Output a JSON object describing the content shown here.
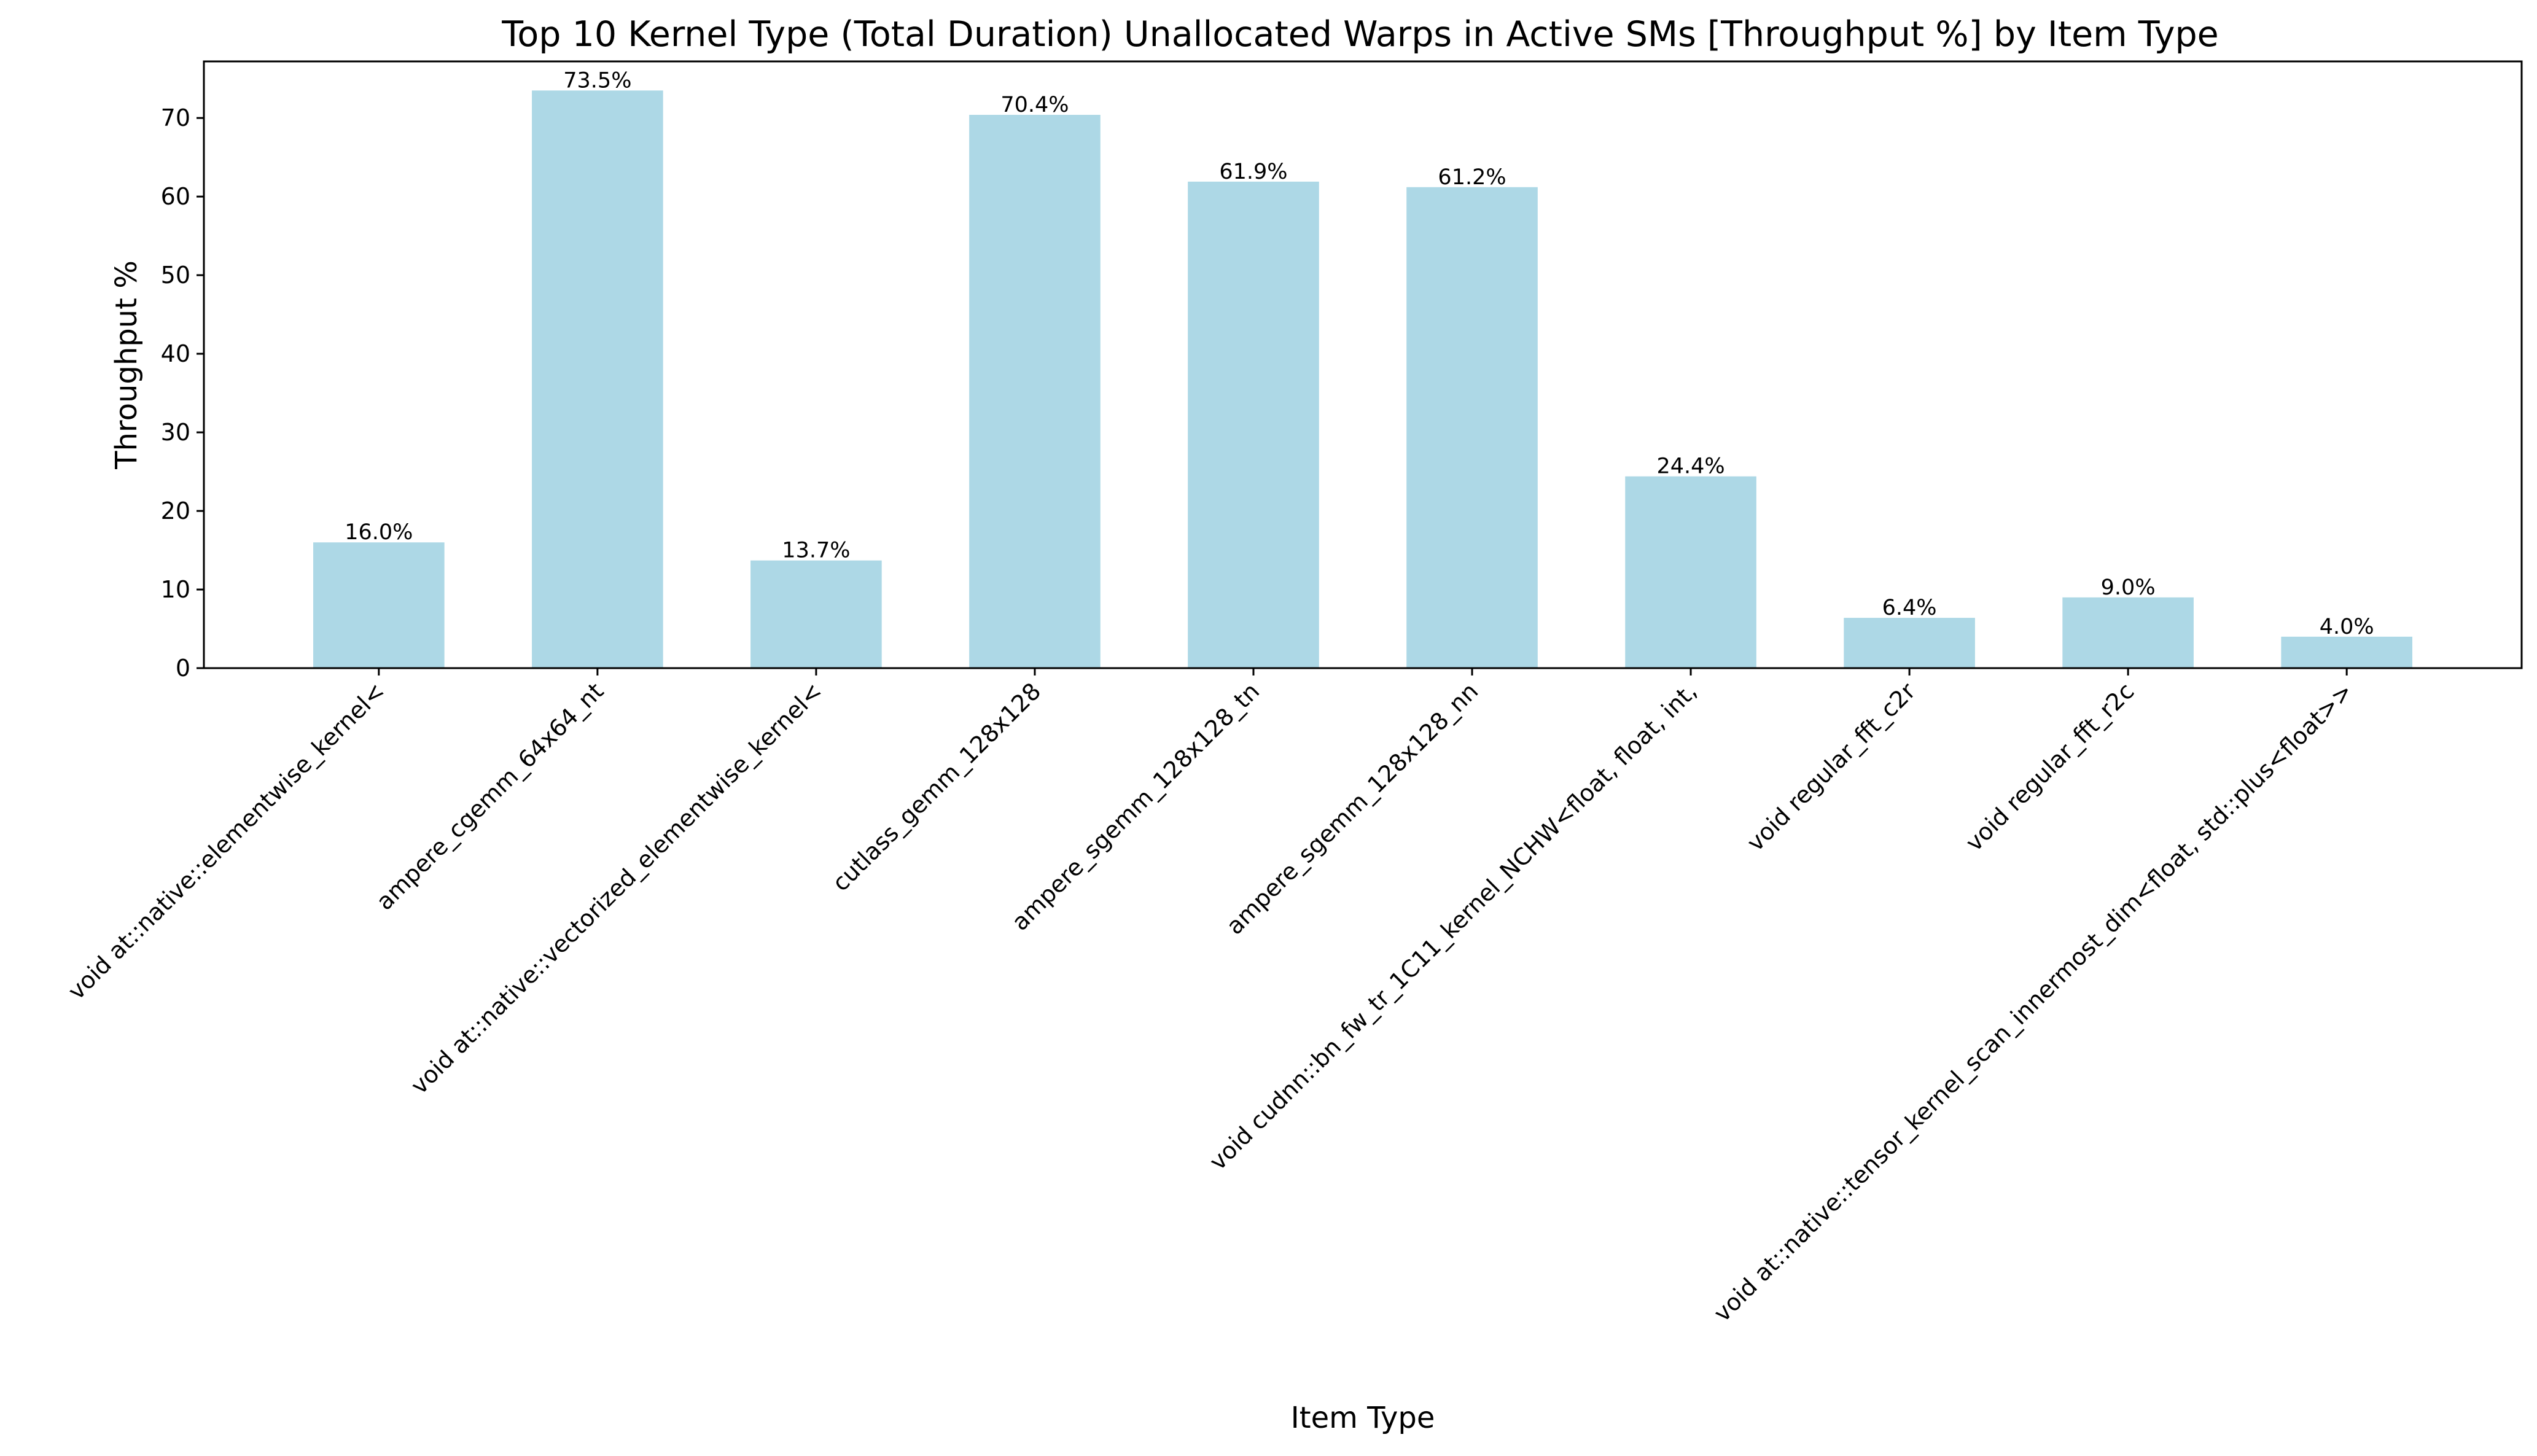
{
  "chart_data": {
    "type": "bar",
    "title": "Top 10 Kernel Type (Total Duration) Unallocated Warps in Active SMs [Throughput %] by Item Type",
    "xlabel": "Item Type",
    "ylabel": "Throughput %",
    "ylim": [
      0,
      77.2
    ],
    "yticks": [
      0,
      10,
      20,
      30,
      40,
      50,
      60,
      70
    ],
    "grid": false,
    "legend": "none",
    "bar_color": "#add8e6",
    "categories": [
      "void at::native::elementwise_kernel<",
      "ampere_cgemm_64x64_nt",
      "void at::native::vectorized_elementwise_kernel<",
      "cutlass_gemm_128x128",
      "ampere_sgemm_128x128_tn",
      "ampere_sgemm_128x128_nn",
      "void cudnn::bn_fw_tr_1C11_kernel_NCHW<float, float, int,",
      "void regular_fft_c2r",
      "void regular_fft_r2c",
      "void at::native::tensor_kernel_scan_innermost_dim<float, std::plus<float>>"
    ],
    "values": [
      16.0,
      73.5,
      13.7,
      70.4,
      61.9,
      61.2,
      24.4,
      6.4,
      9.0,
      4.0
    ],
    "data_labels": [
      "16.0%",
      "73.5%",
      "13.7%",
      "70.4%",
      "61.9%",
      "61.2%",
      "24.4%",
      "6.4%",
      "9.0%",
      "4.0%"
    ]
  }
}
